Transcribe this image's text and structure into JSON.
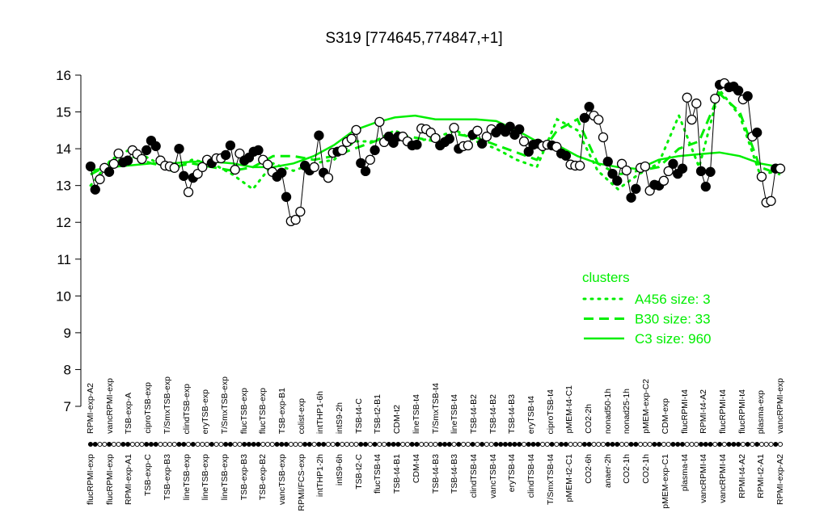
{
  "chart_data": {
    "type": "line",
    "title": "S319 [774645,774847,+1]",
    "xlabel": "",
    "ylabel": "",
    "ylim": [
      7,
      16
    ],
    "yticks": [
      "7",
      "8",
      "9",
      "10",
      "11",
      "12",
      "13",
      "14",
      "15",
      "16"
    ],
    "grid": false,
    "legend_placement": "right",
    "colors": {
      "points": "#000000",
      "clusters": "#00ee00"
    },
    "points": [
      {
        "y": 13.52,
        "f": 1
      },
      {
        "y": 12.89,
        "f": 1
      },
      {
        "y": 13.17,
        "f": 0
      },
      {
        "y": 13.48,
        "f": 0
      },
      {
        "y": 13.37,
        "f": 1
      },
      {
        "y": 13.59,
        "f": 0
      },
      {
        "y": 13.87,
        "f": 0
      },
      {
        "y": 13.63,
        "f": 1
      },
      {
        "y": 13.68,
        "f": 1
      },
      {
        "y": 13.96,
        "f": 0
      },
      {
        "y": 13.85,
        "f": 0
      },
      {
        "y": 13.72,
        "f": 0
      },
      {
        "y": 13.96,
        "f": 1
      },
      {
        "y": 14.22,
        "f": 1
      },
      {
        "y": 14.07,
        "f": 1
      },
      {
        "y": 13.68,
        "f": 0
      },
      {
        "y": 13.54,
        "f": 0
      },
      {
        "y": 13.52,
        "f": 0
      },
      {
        "y": 13.48,
        "f": 0
      },
      {
        "y": 14.0,
        "f": 1
      },
      {
        "y": 13.26,
        "f": 1
      },
      {
        "y": 12.82,
        "f": 0
      },
      {
        "y": 13.21,
        "f": 1
      },
      {
        "y": 13.32,
        "f": 0
      },
      {
        "y": 13.5,
        "f": 0
      },
      {
        "y": 13.7,
        "f": 0
      },
      {
        "y": 13.61,
        "f": 1
      },
      {
        "y": 13.74,
        "f": 0
      },
      {
        "y": 13.74,
        "f": 0
      },
      {
        "y": 13.83,
        "f": 1
      },
      {
        "y": 14.09,
        "f": 1
      },
      {
        "y": 13.43,
        "f": 0
      },
      {
        "y": 13.87,
        "f": 0
      },
      {
        "y": 13.68,
        "f": 1
      },
      {
        "y": 13.76,
        "f": 1
      },
      {
        "y": 13.92,
        "f": 1
      },
      {
        "y": 13.96,
        "f": 1
      },
      {
        "y": 13.7,
        "f": 0
      },
      {
        "y": 13.57,
        "f": 0
      },
      {
        "y": 13.37,
        "f": 0
      },
      {
        "y": 13.24,
        "f": 1
      },
      {
        "y": 13.35,
        "f": 1
      },
      {
        "y": 12.69,
        "f": 1
      },
      {
        "y": 12.03,
        "f": 0
      },
      {
        "y": 12.07,
        "f": 0
      },
      {
        "y": 12.29,
        "f": 0
      },
      {
        "y": 13.54,
        "f": 1
      },
      {
        "y": 13.41,
        "f": 1
      },
      {
        "y": 13.5,
        "f": 0
      },
      {
        "y": 14.36,
        "f": 1
      },
      {
        "y": 13.35,
        "f": 1
      },
      {
        "y": 13.21,
        "f": 0
      },
      {
        "y": 13.89,
        "f": 0
      },
      {
        "y": 13.92,
        "f": 1
      },
      {
        "y": 13.96,
        "f": 0
      },
      {
        "y": 14.18,
        "f": 0
      },
      {
        "y": 14.27,
        "f": 0
      },
      {
        "y": 14.51,
        "f": 0
      },
      {
        "y": 13.61,
        "f": 1
      },
      {
        "y": 13.39,
        "f": 1
      },
      {
        "y": 13.7,
        "f": 0
      },
      {
        "y": 13.96,
        "f": 1
      },
      {
        "y": 14.73,
        "f": 0
      },
      {
        "y": 14.18,
        "f": 0
      },
      {
        "y": 14.33,
        "f": 1
      },
      {
        "y": 14.16,
        "f": 1
      },
      {
        "y": 14.33,
        "f": 1
      },
      {
        "y": 14.33,
        "f": 0
      },
      {
        "y": 14.2,
        "f": 0
      },
      {
        "y": 14.09,
        "f": 1
      },
      {
        "y": 14.11,
        "f": 1
      },
      {
        "y": 14.55,
        "f": 0
      },
      {
        "y": 14.53,
        "f": 0
      },
      {
        "y": 14.44,
        "f": 0
      },
      {
        "y": 14.29,
        "f": 0
      },
      {
        "y": 14.09,
        "f": 1
      },
      {
        "y": 14.18,
        "f": 1
      },
      {
        "y": 14.27,
        "f": 1
      },
      {
        "y": 14.57,
        "f": 0
      },
      {
        "y": 14.0,
        "f": 1
      },
      {
        "y": 14.07,
        "f": 0
      },
      {
        "y": 14.09,
        "f": 0
      },
      {
        "y": 14.38,
        "f": 1
      },
      {
        "y": 14.49,
        "f": 0
      },
      {
        "y": 14.14,
        "f": 1
      },
      {
        "y": 14.33,
        "f": 0
      },
      {
        "y": 14.53,
        "f": 0
      },
      {
        "y": 14.44,
        "f": 1
      },
      {
        "y": 14.57,
        "f": 1
      },
      {
        "y": 14.46,
        "f": 1
      },
      {
        "y": 14.6,
        "f": 1
      },
      {
        "y": 14.38,
        "f": 1
      },
      {
        "y": 14.53,
        "f": 1
      },
      {
        "y": 14.2,
        "f": 0
      },
      {
        "y": 13.92,
        "f": 1
      },
      {
        "y": 14.11,
        "f": 1
      },
      {
        "y": 14.14,
        "f": 1
      },
      {
        "y": 14.07,
        "f": 0
      },
      {
        "y": 14.11,
        "f": 0
      },
      {
        "y": 14.09,
        "f": 1
      },
      {
        "y": 14.05,
        "f": 0
      },
      {
        "y": 13.87,
        "f": 1
      },
      {
        "y": 13.81,
        "f": 1
      },
      {
        "y": 13.57,
        "f": 0
      },
      {
        "y": 13.54,
        "f": 0
      },
      {
        "y": 13.54,
        "f": 0
      },
      {
        "y": 14.84,
        "f": 1
      },
      {
        "y": 15.14,
        "f": 1
      },
      {
        "y": 14.9,
        "f": 0
      },
      {
        "y": 14.79,
        "f": 0
      },
      {
        "y": 14.31,
        "f": 0
      },
      {
        "y": 13.65,
        "f": 1
      },
      {
        "y": 13.32,
        "f": 1
      },
      {
        "y": 13.13,
        "f": 1
      },
      {
        "y": 13.59,
        "f": 0
      },
      {
        "y": 13.41,
        "f": 0
      },
      {
        "y": 12.67,
        "f": 1
      },
      {
        "y": 12.91,
        "f": 1
      },
      {
        "y": 13.48,
        "f": 0
      },
      {
        "y": 13.52,
        "f": 0
      },
      {
        "y": 12.86,
        "f": 0
      },
      {
        "y": 13.02,
        "f": 1
      },
      {
        "y": 13.0,
        "f": 1
      },
      {
        "y": 13.13,
        "f": 0
      },
      {
        "y": 13.39,
        "f": 0
      },
      {
        "y": 13.59,
        "f": 1
      },
      {
        "y": 13.32,
        "f": 1
      },
      {
        "y": 13.46,
        "f": 1
      },
      {
        "y": 15.39,
        "f": 0
      },
      {
        "y": 14.79,
        "f": 0
      },
      {
        "y": 15.23,
        "f": 0
      },
      {
        "y": 13.39,
        "f": 1
      },
      {
        "y": 12.97,
        "f": 1
      },
      {
        "y": 13.37,
        "f": 1
      },
      {
        "y": 15.36,
        "f": 0
      },
      {
        "y": 15.74,
        "f": 1
      },
      {
        "y": 15.78,
        "f": 0
      },
      {
        "y": 15.67,
        "f": 1
      },
      {
        "y": 15.69,
        "f": 1
      },
      {
        "y": 15.58,
        "f": 1
      },
      {
        "y": 15.34,
        "f": 0
      },
      {
        "y": 15.43,
        "f": 1
      },
      {
        "y": 14.33,
        "f": 0
      },
      {
        "y": 14.44,
        "f": 1
      },
      {
        "y": 13.24,
        "f": 0
      },
      {
        "y": 12.54,
        "f": 0
      },
      {
        "y": 12.58,
        "f": 0
      },
      {
        "y": 13.46,
        "f": 1
      },
      {
        "y": 13.46,
        "f": 0
      }
    ],
    "series": [
      {
        "name": "A456 size: 3",
        "style": "dotted",
        "values": [
          13.0,
          13.7,
          14.0,
          13.7,
          13.4,
          13.7,
          13.6,
          13.3,
          12.9,
          13.6,
          13.4,
          13.6,
          13.7,
          14.2,
          14.2,
          14.5,
          14.2,
          14.3,
          14.5,
          14.2,
          14.0,
          13.7,
          13.5,
          14.8,
          14.5,
          13.4,
          12.9,
          13.3,
          13.6,
          14.9,
          13.5,
          15.6,
          14.9,
          13.3,
          13.4
        ]
      },
      {
        "name": "B30 size: 33",
        "style": "dashed",
        "values": [
          13.3,
          13.6,
          13.8,
          13.6,
          13.5,
          13.6,
          13.5,
          13.4,
          13.5,
          13.8,
          13.8,
          13.7,
          13.8,
          14.0,
          14.2,
          14.4,
          14.3,
          14.2,
          14.4,
          14.3,
          14.1,
          13.9,
          13.7,
          14.5,
          14.8,
          13.6,
          13.3,
          13.4,
          13.5,
          14.0,
          14.2,
          15.5,
          15.0,
          13.5,
          13.3
        ]
      },
      {
        "name": "C3 size: 960",
        "style": "solid",
        "values": [
          13.4,
          13.5,
          13.55,
          13.6,
          13.6,
          13.65,
          13.65,
          13.6,
          13.5,
          13.5,
          13.6,
          13.8,
          14.1,
          14.5,
          14.7,
          14.85,
          14.9,
          14.8,
          14.8,
          14.8,
          14.75,
          14.5,
          14.2,
          14.1,
          13.8,
          13.6,
          13.5,
          13.45,
          13.7,
          13.8,
          13.85,
          13.9,
          13.8,
          13.6,
          13.5
        ]
      }
    ],
    "legend_title": "clusters",
    "labels_top": [
      "RPMI-exp-A2",
      "vancRPMI-exp",
      "TSB-exp-A",
      "ciproTSB-exp",
      "T/SmxTSB-exp",
      "clindTSB-exp",
      "eryTSB-exp",
      "T/SmxTSB-exp",
      "flucTSB-exp",
      "flucTSB-exp",
      "TSB-exp-B1",
      "colist-exp",
      "intTHP1-6h",
      "intS9-2h",
      "TSB-t4-C",
      "TSB-t2-B1",
      "CDM-t2",
      "lineTSB-t4",
      "T/SmxTSB-t4",
      "lineTSB-t4",
      "TSB-t4-B2",
      "TSB-t4-B2",
      "TSB-t4-B3",
      "eryTSB-t4",
      "ciproTSB-t4",
      "pMEM-t4-C1",
      "CO2-2h",
      "nonad50-1h",
      "nonad25-1h",
      "pMEM-exp-C2",
      "CDM-exp",
      "flucRPMI-t4",
      "RPMI-t4-A2",
      "flucRPMI-t4",
      "flucRPMI-t4",
      "plasma-exp",
      "vancRPMI-exp"
    ],
    "labels_bottom": [
      "flucRPMI-exp",
      "flucRPMI-exp",
      "RPMI-exp-A1",
      "TSB-exp-C",
      "TSB-exp-B3",
      "lineTSB-exp",
      "lineTSB-exp",
      "lineTSB-exp",
      "TSB-exp-B3",
      "TSB-exp-B2",
      "vancTSB-exp",
      "RPMI/FCS-exp",
      "intTHP1-2h",
      "intS9-6h",
      "TSB-t2-C",
      "flucTSB-t4",
      "TSB-t4-B1",
      "CDM-t4",
      "TSB-t4-B3",
      "TSB-t4-B3",
      "clindTSB-t4",
      "vancTSB-t4",
      "eryTSB-t4",
      "clindTSB-t4",
      "T/SmxTSB-t4",
      "pMEM-t2-C1",
      "CO2-6h",
      "anaer-2h",
      "CO2-1h",
      "CO2-1h",
      "pMEM-exp-C1",
      "plasma-t4",
      "vancRPMI-t4",
      "vancRPMI-t4",
      "RPMI-t4-A2",
      "RPMI-t2-A1",
      "RPMI-exp-A2"
    ]
  }
}
